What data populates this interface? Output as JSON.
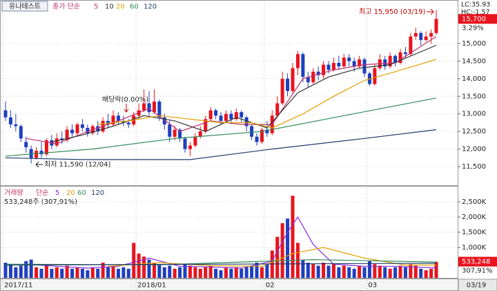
{
  "chart_data": [
    {
      "type": "candlestick",
      "title": "유니테스트",
      "ma_label": "종가 단순",
      "lc_label": "LC:35.93",
      "hc_label": "HC:-1.57",
      "last_price": {
        "value": 15700,
        "label": "15,700"
      },
      "change_label": "3.29%",
      "annotations": [
        "최고 15,950 (03/19)",
        "최저 11,590 (12/04)",
        "배당락(0.00%)"
      ],
      "up_color": "#e8141e",
      "down_color": "#1f3fbf",
      "open": [
        13100,
        12900,
        12700,
        12650,
        12200,
        12000,
        11750,
        11950,
        11850,
        12250,
        12100,
        12300,
        12250,
        12550,
        12450,
        12700,
        12600,
        12450,
        12650,
        12500,
        12800,
        12700,
        12950,
        12800,
        12750,
        12700,
        12950,
        13100,
        13300,
        13050,
        13350,
        12900,
        12700,
        12350,
        12550,
        12300,
        12000,
        12100,
        12350,
        12500,
        12850,
        13100,
        12950,
        12800,
        13000,
        12850,
        13050,
        12900,
        12650,
        12350,
        12200,
        12550,
        12450,
        12950,
        13300,
        14000,
        13650,
        14300,
        14700,
        14050,
        13900,
        14200,
        14100,
        14400,
        14250,
        14450,
        14350,
        14600,
        14500,
        14350,
        14550,
        14150,
        13850,
        14300,
        14550,
        14350,
        14650,
        14450,
        14750,
        14700,
        15200,
        15300,
        15100,
        15200,
        15300
      ],
      "high": [
        13350,
        13100,
        13000,
        12700,
        12350,
        12100,
        12050,
        12200,
        12300,
        12400,
        12450,
        12500,
        12650,
        12700,
        12750,
        12850,
        12700,
        12700,
        12800,
        12900,
        13000,
        13100,
        13050,
        12950,
        12850,
        13050,
        13300,
        13700,
        13650,
        13700,
        13400,
        13000,
        12800,
        12650,
        12600,
        12350,
        12200,
        12450,
        12650,
        12950,
        13200,
        13150,
        13050,
        13100,
        13100,
        13150,
        13100,
        12950,
        12700,
        12450,
        12600,
        12800,
        13100,
        13500,
        14200,
        14150,
        14450,
        14800,
        14750,
        14200,
        14300,
        14350,
        14500,
        14500,
        14600,
        14650,
        14700,
        14700,
        14600,
        14650,
        14600,
        14200,
        14400,
        14700,
        14650,
        14750,
        14700,
        14850,
        14900,
        15300,
        15450,
        15350,
        15350,
        15400,
        15950
      ],
      "low": [
        12800,
        12600,
        12500,
        12200,
        11900,
        11590,
        11700,
        11750,
        11800,
        12000,
        12050,
        12150,
        12200,
        12350,
        12400,
        12500,
        12350,
        12400,
        12400,
        12450,
        12600,
        12650,
        12700,
        12650,
        12600,
        12650,
        12850,
        13050,
        12950,
        13000,
        12800,
        12550,
        12200,
        12250,
        12200,
        11900,
        11800,
        12050,
        12300,
        12450,
        12800,
        12850,
        12700,
        12750,
        12700,
        12800,
        12750,
        12500,
        12250,
        12100,
        12150,
        12350,
        12400,
        12900,
        13250,
        13500,
        13600,
        14100,
        13900,
        13750,
        13850,
        13950,
        14000,
        14150,
        14200,
        14250,
        14300,
        14350,
        14200,
        14300,
        14050,
        13800,
        13800,
        14250,
        14250,
        14300,
        14350,
        14400,
        14600,
        14650,
        15100,
        14950,
        15050,
        15000,
        15250
      ],
      "close": [
        12900,
        12700,
        12650,
        12300,
        12050,
        11750,
        11950,
        11850,
        12250,
        12100,
        12300,
        12250,
        12550,
        12450,
        12700,
        12600,
        12450,
        12650,
        12500,
        12800,
        12700,
        12950,
        12800,
        12750,
        12700,
        12950,
        13100,
        13300,
        13050,
        13350,
        12900,
        12700,
        12350,
        12550,
        12300,
        12000,
        12100,
        12350,
        12500,
        12850,
        13100,
        12950,
        12800,
        13000,
        12850,
        13050,
        12900,
        12650,
        12350,
        12200,
        12550,
        12450,
        12950,
        13300,
        14000,
        13650,
        14300,
        14700,
        14050,
        13900,
        14200,
        14100,
        14400,
        14250,
        14450,
        14350,
        14600,
        14500,
        14350,
        14550,
        14150,
        13850,
        14300,
        14550,
        14350,
        14650,
        14450,
        14750,
        14700,
        15200,
        15300,
        15100,
        15200,
        15300,
        15700
      ],
      "series": [
        {
          "name": "5",
          "color": "#c0306a",
          "x": [
            4,
            10,
            16,
            22,
            28,
            34,
            40,
            46,
            52,
            58,
            64,
            70,
            76,
            84
          ],
          "values": [
            12300,
            12150,
            12500,
            12800,
            13150,
            12500,
            12800,
            12700,
            12700,
            14000,
            14250,
            14400,
            14450,
            15200
          ]
        },
        {
          "name": "10",
          "color": "#333333",
          "x": [
            9,
            15,
            21,
            27,
            33,
            39,
            45,
            51,
            57,
            63,
            69,
            75,
            84
          ],
          "values": [
            12200,
            12400,
            12650,
            12950,
            12800,
            12500,
            12900,
            12600,
            13600,
            14050,
            14300,
            14400,
            14950
          ]
        },
        {
          "name": "20",
          "color": "#e0a000",
          "x": [
            18,
            24,
            30,
            36,
            42,
            48,
            52,
            58,
            64,
            70,
            76,
            84
          ],
          "values": [
            12700,
            12800,
            12950,
            12850,
            12750,
            12750,
            12600,
            13000,
            13500,
            13950,
            14200,
            14550
          ]
        },
        {
          "name": "60",
          "color": "#2e8b57",
          "x": [
            0,
            17,
            33,
            50,
            66,
            84
          ],
          "values": [
            11800,
            12000,
            12300,
            12500,
            12950,
            13450
          ]
        },
        {
          "name": "120",
          "color": "#1f3a6e",
          "x": [
            0,
            15,
            36,
            52,
            70,
            84
          ],
          "values": [
            11750,
            11700,
            11700,
            12000,
            12300,
            12550
          ]
        }
      ],
      "ylim": [
        10970,
        16140
      ],
      "yticks": [
        {
          "value": 15000,
          "label": "15,000"
        },
        {
          "value": 14500,
          "label": "14,500"
        },
        {
          "value": 14000,
          "label": "14,000"
        },
        {
          "value": 13500,
          "label": "13,500"
        },
        {
          "value": 13000,
          "label": "13,000"
        },
        {
          "value": 12500,
          "label": "12,500"
        },
        {
          "value": 12000,
          "label": "12,000"
        },
        {
          "value": 11500,
          "label": "11,500"
        }
      ],
      "grid": true
    },
    {
      "type": "bar",
      "title": "거래량",
      "ma_label": "단순",
      "info_label": "533,248주 (307,91%)",
      "last_volume": {
        "value": 533248,
        "label": "533,248"
      },
      "ratio_label": "307,91%",
      "last_date": "03/19",
      "categories": [
        "2017/11",
        null,
        null,
        null,
        null,
        null,
        null,
        null,
        null,
        null,
        null,
        null,
        null,
        null,
        null,
        null,
        null,
        null,
        null,
        null,
        null,
        null,
        null,
        null,
        null,
        null,
        "2018/01",
        null,
        null,
        null,
        null,
        null,
        null,
        null,
        null,
        null,
        null,
        null,
        null,
        null,
        null,
        null,
        null,
        null,
        null,
        null,
        null,
        null,
        null,
        null,
        null,
        "02",
        null,
        null,
        null,
        null,
        null,
        null,
        null,
        null,
        null,
        null,
        null,
        null,
        null,
        null,
        null,
        null,
        null,
        null,
        null,
        "03",
        null,
        null,
        null,
        null,
        null,
        null,
        null,
        null,
        null,
        null,
        null,
        null,
        null
      ],
      "values": [
        500000,
        450000,
        350000,
        400000,
        550000,
        600000,
        350000,
        300000,
        450000,
        300000,
        350000,
        300000,
        400000,
        300000,
        350000,
        300000,
        250000,
        350000,
        300000,
        500000,
        350000,
        400000,
        300000,
        350000,
        300000,
        1150000,
        800000,
        700000,
        600000,
        500000,
        450000,
        350000,
        400000,
        300000,
        350000,
        450000,
        400000,
        350000,
        300000,
        350000,
        400000,
        300000,
        250000,
        350000,
        300000,
        350000,
        300000,
        350000,
        400000,
        500000,
        350000,
        450000,
        900000,
        1350000,
        1800000,
        1950000,
        2700000,
        1150000,
        600000,
        500000,
        450000,
        400000,
        500000,
        400000,
        450000,
        350000,
        400000,
        350000,
        300000,
        400000,
        350000,
        550000,
        450000,
        400000,
        350000,
        300000,
        350000,
        400000,
        350000,
        450000,
        400000,
        300000,
        250000,
        300000,
        533248
      ],
      "series": [
        {
          "name": "5",
          "color": "#8a2be2",
          "x": [
            4,
            10,
            16,
            22,
            28,
            34,
            40,
            46,
            52,
            55,
            57,
            60,
            64,
            70,
            76,
            84
          ],
          "values": [
            450000,
            380000,
            320000,
            380000,
            650000,
            380000,
            360000,
            320000,
            550000,
            1500000,
            2000000,
            1100000,
            450000,
            380000,
            380000,
            330000
          ]
        },
        {
          "name": "20",
          "color": "#e0a000",
          "x": [
            20,
            30,
            40,
            50,
            56,
            62,
            70,
            78,
            84
          ],
          "values": [
            380000,
            500000,
            400000,
            380000,
            800000,
            1000000,
            650000,
            420000,
            420000
          ]
        },
        {
          "name": "60",
          "color": "#2e8b57",
          "x": [
            0,
            30,
            60,
            84
          ],
          "values": [
            450000,
            430000,
            600000,
            520000
          ]
        },
        {
          "name": "120",
          "color": "#1f3a6e",
          "x": [
            0,
            84
          ],
          "values": [
            420000,
            480000
          ]
        }
      ],
      "ylim": [
        0,
        3000000
      ],
      "yticks": [
        {
          "value": 2500000,
          "label": "2,500K"
        },
        {
          "value": 2000000,
          "label": "2,000K"
        },
        {
          "value": 1500000,
          "label": "1,500K"
        },
        {
          "value": 1000000,
          "label": "1,000K"
        }
      ],
      "grid": true
    }
  ]
}
